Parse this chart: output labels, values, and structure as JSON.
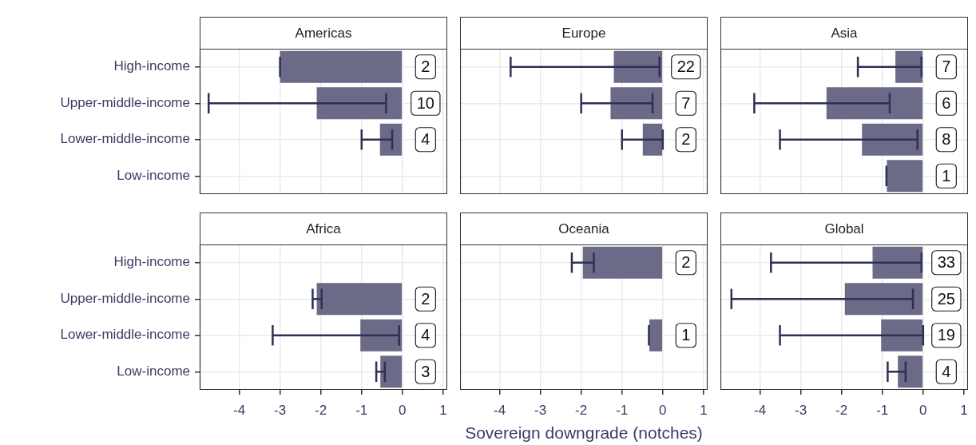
{
  "chart_data": [
    {
      "type": "bar",
      "orientation": "horizontal",
      "title": "Americas",
      "categories": [
        "High-income",
        "Upper-middle-income",
        "Lower-middle-income",
        "Low-income"
      ],
      "values": [
        -3.0,
        -2.1,
        -0.55,
        null
      ],
      "errors": [
        [
          -3.0,
          -3.0
        ],
        [
          -4.75,
          -0.4
        ],
        [
          -1.0,
          -0.25
        ],
        null
      ],
      "annotations": [
        {
          "text": "2",
          "y": "High-income"
        },
        {
          "text": "10",
          "y": "Upper-middle-income"
        },
        {
          "text": "4",
          "y": "Lower-middle-income"
        }
      ],
      "color": "#6b6a87",
      "xlim": [
        -4.97,
        1.1
      ],
      "xticks": [
        -4,
        -3,
        -2,
        -1,
        0,
        1
      ],
      "grid": true,
      "tick_labels": "y"
    },
    {
      "type": "bar",
      "orientation": "horizontal",
      "title": "Europe",
      "categories": [
        "High-income",
        "Upper-middle-income",
        "Lower-middle-income",
        "Low-income"
      ],
      "values": [
        -1.2,
        -1.28,
        -0.49,
        null
      ],
      "errors": [
        [
          -3.73,
          -0.08
        ],
        [
          -2.0,
          -0.25
        ],
        [
          -1.0,
          0.0
        ],
        null
      ],
      "annotations": [
        {
          "text": "22",
          "y": "High-income"
        },
        {
          "text": "7",
          "y": "Upper-middle-income"
        },
        {
          "text": "2",
          "y": "Lower-middle-income"
        }
      ],
      "color": "#6b6a87",
      "xlim": [
        -4.97,
        1.1
      ],
      "xticks": [
        -4,
        -3,
        -2,
        -1,
        0,
        1
      ],
      "grid": true,
      "tick_labels": false
    },
    {
      "type": "bar",
      "orientation": "horizontal",
      "title": "Asia",
      "categories": [
        "High-income",
        "Upper-middle-income",
        "Lower-middle-income",
        "Low-income"
      ],
      "values": [
        -0.68,
        -2.37,
        -1.5,
        -0.89
      ],
      "errors": [
        [
          -1.6,
          -0.04
        ],
        [
          -4.14,
          -0.82
        ],
        [
          -3.51,
          -0.14
        ],
        [
          -0.9,
          -0.9
        ]
      ],
      "annotations": [
        {
          "text": "7",
          "y": "High-income"
        },
        {
          "text": "6",
          "y": "Upper-middle-income"
        },
        {
          "text": "8",
          "y": "Lower-middle-income"
        },
        {
          "text": "1",
          "y": "Low-income"
        }
      ],
      "color": "#6b6a87",
      "xlim": [
        -4.97,
        1.1
      ],
      "xticks": [
        -4,
        -3,
        -2,
        -1,
        0,
        1
      ],
      "grid": true,
      "tick_labels": false
    },
    {
      "type": "bar",
      "orientation": "horizontal",
      "title": "Africa",
      "categories": [
        "High-income",
        "Upper-middle-income",
        "Lower-middle-income",
        "Low-income"
      ],
      "values": [
        null,
        -2.1,
        -1.03,
        -0.54
      ],
      "errors": [
        null,
        [
          -2.2,
          -1.98
        ],
        [
          -3.18,
          -0.08
        ],
        [
          -0.64,
          -0.43
        ]
      ],
      "annotations": [
        {
          "text": "2",
          "y": "Upper-middle-income"
        },
        {
          "text": "4",
          "y": "Lower-middle-income"
        },
        {
          "text": "3",
          "y": "Low-income"
        }
      ],
      "color": "#6b6a87",
      "xlim": [
        -4.97,
        1.1
      ],
      "xticks": [
        -4,
        -3,
        -2,
        -1,
        0,
        1
      ],
      "grid": true
    },
    {
      "type": "bar",
      "orientation": "horizontal",
      "title": "Oceania",
      "xlabel": "Sovereign downgrade (notches)",
      "categories": [
        "High-income",
        "Upper-middle-income",
        "Lower-middle-income",
        "Low-income"
      ],
      "values": [
        -1.96,
        null,
        -0.33,
        null
      ],
      "errors": [
        [
          -2.23,
          -1.69
        ],
        null,
        [
          -0.34,
          -0.34
        ],
        null
      ],
      "annotations": [
        {
          "text": "2",
          "y": "High-income"
        },
        {
          "text": "1",
          "y": "Lower-middle-income"
        }
      ],
      "color": "#6b6a87",
      "xlim": [
        -4.97,
        1.1
      ],
      "xticks": [
        -4,
        -3,
        -2,
        -1,
        0,
        1
      ],
      "grid": true,
      "tick_labels": "x"
    },
    {
      "type": "bar",
      "orientation": "horizontal",
      "title": "Global",
      "categories": [
        "High-income",
        "Upper-middle-income",
        "Lower-middle-income",
        "Low-income"
      ],
      "values": [
        -1.24,
        -1.92,
        -1.03,
        -0.62
      ],
      "errors": [
        [
          -3.73,
          -0.04
        ],
        [
          -4.7,
          -0.25
        ],
        [
          -3.51,
          0.0
        ],
        [
          -0.87,
          -0.43
        ]
      ],
      "annotations": [
        {
          "text": "33",
          "y": "High-income"
        },
        {
          "text": "25",
          "y": "Upper-middle-income"
        },
        {
          "text": "19",
          "y": "Lower-middle-income"
        },
        {
          "text": "4",
          "y": "Low-income"
        }
      ],
      "color": "#6b6a87",
      "xlim": [
        -4.97,
        1.1
      ],
      "xticks": [
        -4,
        -3,
        -2,
        -1,
        0,
        1
      ],
      "grid": true,
      "tick_labels": "x"
    }
  ]
}
